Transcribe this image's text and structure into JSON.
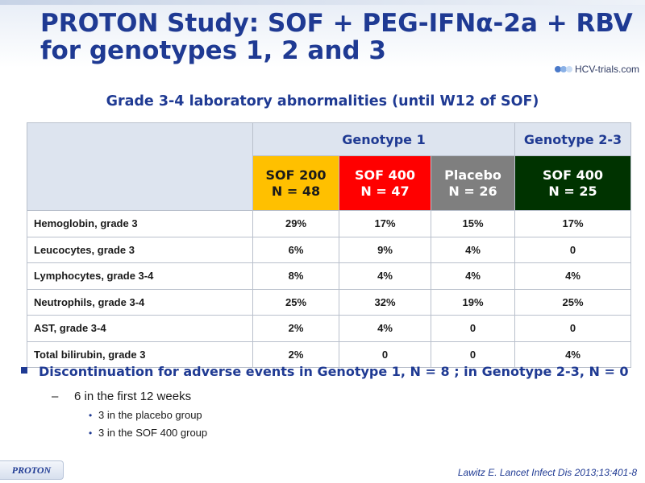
{
  "title": {
    "line1": "PROTON Study: SOF + PEG-IFNα-2a + RBV",
    "line2": "for genotypes 1, 2 and 3"
  },
  "logo": {
    "text": "HCV-trials.com"
  },
  "subtitle": "Grade 3-4 laboratory abnormalities (until W12 of SOF)",
  "table": {
    "genotype_headers": [
      "Genotype 1",
      "Genotype 2-3"
    ],
    "groups": [
      {
        "name": "SOF 200",
        "n": "N = 48",
        "color": "#ffc000"
      },
      {
        "name": "SOF 400",
        "n": "N = 47",
        "color": "#ff0000"
      },
      {
        "name": "Placebo",
        "n": "N = 26",
        "color": "#7f7f7f"
      },
      {
        "name": "SOF 400",
        "n": "N = 25",
        "color": "#003300"
      }
    ],
    "rows": [
      {
        "label": "Hemoglobin, grade 3",
        "values": [
          "29%",
          "17%",
          "15%",
          "17%"
        ]
      },
      {
        "label": "Leucocytes, grade 3",
        "values": [
          "6%",
          "9%",
          "4%",
          "0"
        ]
      },
      {
        "label": "Lymphocytes, grade 3-4",
        "values": [
          "8%",
          "4%",
          "4%",
          "4%"
        ]
      },
      {
        "label": "Neutrophils, grade 3-4",
        "values": [
          "25%",
          "32%",
          "19%",
          "25%"
        ]
      },
      {
        "label": "AST, grade 3-4",
        "values": [
          "2%",
          "4%",
          "0",
          "0"
        ]
      },
      {
        "label": "Total bilirubin, grade 3",
        "values": [
          "2%",
          "0",
          "0",
          "4%"
        ]
      }
    ]
  },
  "bullets": {
    "main": "Discontinuation for adverse events in Genotype 1, N = 8 ; in Genotype 2-3, N = 0",
    "sub": "6 in the first 12 weeks",
    "sub_items": [
      "3 in the placebo group",
      "3 in the SOF 400 group"
    ]
  },
  "footer": {
    "tag": "PROTON",
    "reference": "Lawitz  E. Lancet Infect Dis 2013;13:401-8"
  },
  "colors": {
    "title": "#1f3a93",
    "header_bg": "#dde4ef",
    "sof200": "#ffc000",
    "sof400": "#ff0000",
    "placebo": "#7f7f7f",
    "sof400_g23": "#003300"
  }
}
